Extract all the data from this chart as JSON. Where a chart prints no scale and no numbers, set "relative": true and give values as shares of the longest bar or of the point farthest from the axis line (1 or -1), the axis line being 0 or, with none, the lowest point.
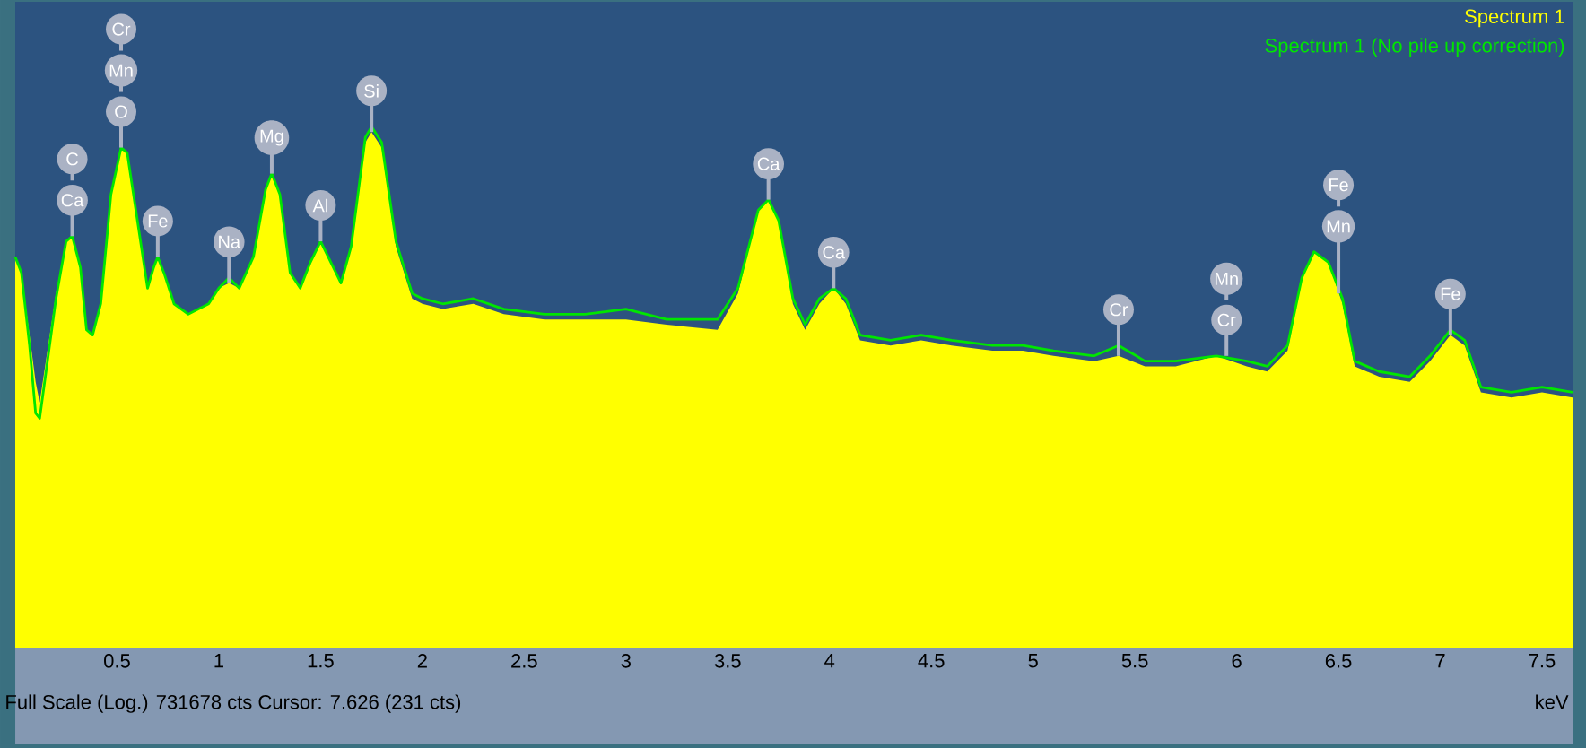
{
  "chart_data": {
    "type": "area",
    "relative": true,
    "xlabel": "keV",
    "legend": "top right",
    "xlim": [
      0,
      7.65
    ],
    "xticks": [
      0.5,
      1,
      1.5,
      2,
      2.5,
      3,
      3.5,
      4,
      4.5,
      5,
      5.5,
      6,
      6.5,
      7,
      7.5
    ],
    "x": [
      0.0,
      0.03,
      0.07,
      0.1,
      0.12,
      0.2,
      0.25,
      0.28,
      0.32,
      0.35,
      0.38,
      0.42,
      0.47,
      0.52,
      0.55,
      0.6,
      0.65,
      0.68,
      0.7,
      0.73,
      0.78,
      0.85,
      0.95,
      1.0,
      1.05,
      1.1,
      1.17,
      1.23,
      1.26,
      1.3,
      1.35,
      1.4,
      1.45,
      1.5,
      1.55,
      1.6,
      1.65,
      1.72,
      1.75,
      1.8,
      1.87,
      1.95,
      2.0,
      2.1,
      2.25,
      2.4,
      2.6,
      2.8,
      3.0,
      3.2,
      3.45,
      3.55,
      3.65,
      3.7,
      3.75,
      3.82,
      3.88,
      3.95,
      4.02,
      4.08,
      4.15,
      4.3,
      4.45,
      4.6,
      4.8,
      4.95,
      5.1,
      5.3,
      5.42,
      5.55,
      5.7,
      5.9,
      6.05,
      6.15,
      6.25,
      6.32,
      6.38,
      6.45,
      6.52,
      6.58,
      6.7,
      6.85,
      6.95,
      7.05,
      7.12,
      7.2,
      7.35,
      7.5,
      7.65
    ],
    "series": [
      {
        "name": "Spectrum 1",
        "color": "#ffff00",
        "values": [
          0.75,
          0.72,
          0.6,
          0.51,
          0.47,
          0.68,
          0.78,
          0.79,
          0.73,
          0.61,
          0.6,
          0.66,
          0.87,
          0.96,
          0.95,
          0.82,
          0.69,
          0.73,
          0.75,
          0.72,
          0.66,
          0.64,
          0.66,
          0.69,
          0.7,
          0.69,
          0.75,
          0.88,
          0.91,
          0.87,
          0.72,
          0.69,
          0.74,
          0.78,
          0.74,
          0.7,
          0.77,
          0.97,
          0.99,
          0.96,
          0.77,
          0.67,
          0.66,
          0.65,
          0.66,
          0.64,
          0.63,
          0.63,
          0.63,
          0.62,
          0.61,
          0.68,
          0.84,
          0.86,
          0.82,
          0.66,
          0.61,
          0.66,
          0.69,
          0.66,
          0.59,
          0.58,
          0.59,
          0.58,
          0.57,
          0.57,
          0.56,
          0.55,
          0.56,
          0.54,
          0.54,
          0.56,
          0.54,
          0.53,
          0.57,
          0.71,
          0.76,
          0.74,
          0.66,
          0.54,
          0.52,
          0.51,
          0.55,
          0.6,
          0.58,
          0.49,
          0.48,
          0.49,
          0.48
        ]
      },
      {
        "name": "Spectrum 1 (No pile up correction)",
        "type": "line",
        "color": "#00e600",
        "values": [
          0.75,
          0.72,
          0.58,
          0.45,
          0.44,
          0.67,
          0.78,
          0.79,
          0.73,
          0.61,
          0.6,
          0.66,
          0.87,
          0.96,
          0.95,
          0.82,
          0.69,
          0.73,
          0.75,
          0.72,
          0.66,
          0.64,
          0.66,
          0.69,
          0.71,
          0.69,
          0.75,
          0.88,
          0.91,
          0.87,
          0.72,
          0.69,
          0.74,
          0.78,
          0.74,
          0.7,
          0.77,
          0.98,
          1.0,
          0.97,
          0.78,
          0.68,
          0.67,
          0.66,
          0.67,
          0.65,
          0.64,
          0.64,
          0.65,
          0.63,
          0.63,
          0.69,
          0.84,
          0.86,
          0.82,
          0.67,
          0.62,
          0.67,
          0.69,
          0.67,
          0.6,
          0.59,
          0.6,
          0.59,
          0.58,
          0.58,
          0.57,
          0.56,
          0.58,
          0.55,
          0.55,
          0.56,
          0.55,
          0.54,
          0.58,
          0.71,
          0.76,
          0.74,
          0.67,
          0.55,
          0.53,
          0.52,
          0.56,
          0.61,
          0.59,
          0.5,
          0.49,
          0.5,
          0.49
        ]
      }
    ],
    "annotations": [
      "Full Scale (Log.) 731678 cts Cursor: 7.626  (231 cts)",
      {
        "text": "Ca",
        "x": 0.28,
        "y": 0.79
      },
      "C",
      {
        "text": "O",
        "x": 0.52,
        "y": 0.96
      },
      "Mn",
      "Cr",
      {
        "text": "Fe",
        "x": 0.7,
        "y": 0.75
      },
      {
        "text": "Na",
        "x": 1.05,
        "y": 0.7
      },
      {
        "text": "Mg",
        "x": 1.26,
        "y": 0.91
      },
      {
        "text": "Al",
        "x": 1.5,
        "y": 0.78
      },
      {
        "text": "Si",
        "x": 1.75,
        "y": 0.99
      },
      {
        "text": "Ca",
        "x": 3.7,
        "y": 0.86
      },
      {
        "text": "Ca",
        "x": 4.02,
        "y": 0.69
      },
      {
        "text": "Cr",
        "x": 5.42,
        "y": 0.56
      },
      {
        "text": "Cr",
        "x": 5.95,
        "y": 0.56
      },
      "Mn",
      {
        "text": "Mn",
        "x": 6.5,
        "y": 0.68
      },
      "Fe",
      {
        "text": "Fe",
        "x": 7.05,
        "y": 0.6
      }
    ]
  }
}
